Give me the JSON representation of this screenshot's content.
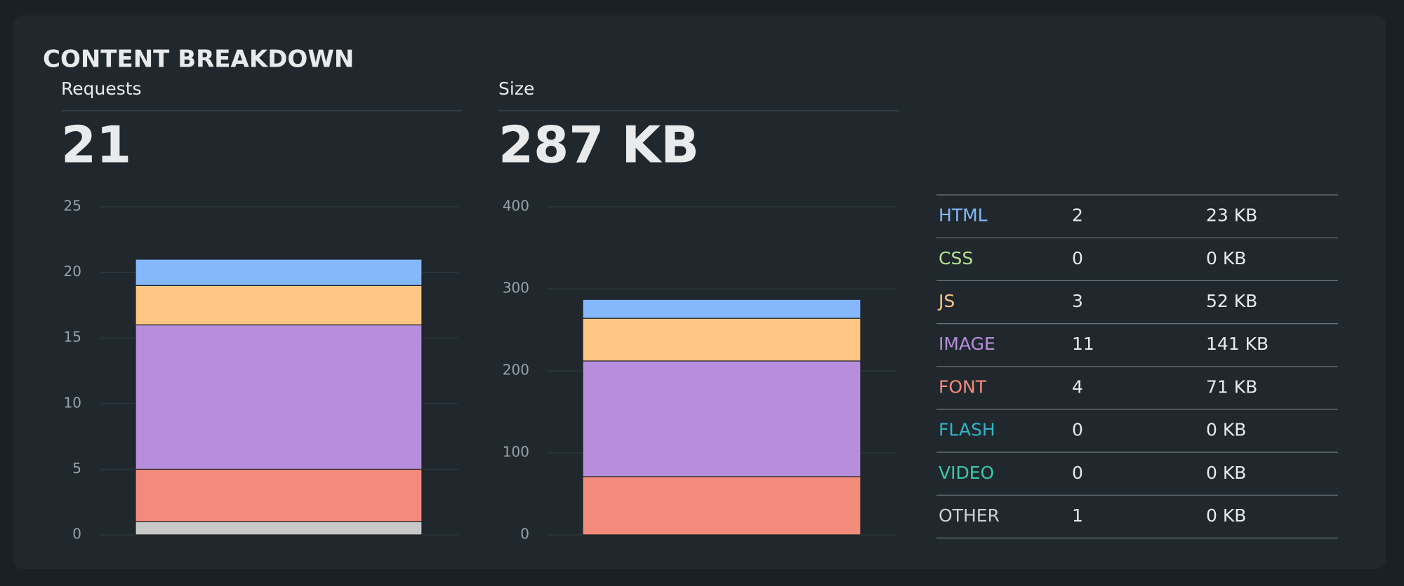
{
  "title": "CONTENT BREAKDOWN",
  "summary": [
    {
      "label": "Requests",
      "value": "21"
    },
    {
      "label": "Size",
      "value": "287 KB"
    }
  ],
  "chart_data": [
    {
      "type": "bar",
      "stacked": true,
      "categories": [
        null
      ],
      "ylim": [
        0,
        25
      ],
      "yticks": [
        0,
        5,
        10,
        15,
        20,
        25
      ],
      "grid": true,
      "series": [
        {
          "color": "#c8c8c8",
          "values": [
            1
          ]
        },
        {
          "color": "#3cc8a8",
          "values": [
            0
          ]
        },
        {
          "color": "#2fb4c6",
          "values": [
            0
          ]
        },
        {
          "color": "#f38b7d",
          "values": [
            4
          ]
        },
        {
          "color": "#b68edb",
          "values": [
            11
          ]
        },
        {
          "color": "#fec584",
          "values": [
            3
          ]
        },
        {
          "color": "#b6e28e",
          "values": [
            0
          ]
        },
        {
          "color": "#85b7fc",
          "values": [
            2
          ]
        }
      ]
    },
    {
      "type": "bar",
      "stacked": true,
      "categories": [
        null
      ],
      "ylim": [
        0,
        400
      ],
      "yticks": [
        0,
        100,
        200,
        300,
        400
      ],
      "grid": true,
      "series": [
        {
          "color": "#c8c8c8",
          "values": [
            0
          ]
        },
        {
          "color": "#3cc8a8",
          "values": [
            0
          ]
        },
        {
          "color": "#2fb4c6",
          "values": [
            0
          ]
        },
        {
          "color": "#f38b7d",
          "values": [
            71
          ]
        },
        {
          "color": "#b68edb",
          "values": [
            141
          ]
        },
        {
          "color": "#fec584",
          "values": [
            52
          ]
        },
        {
          "color": "#b6e28e",
          "values": [
            0
          ]
        },
        {
          "color": "#85b7fc",
          "values": [
            23
          ]
        }
      ]
    }
  ],
  "table": {
    "rows": [
      {
        "type": "HTML",
        "color": "#85b7fc",
        "requests": "2",
        "size": "23 KB"
      },
      {
        "type": "CSS",
        "color": "#b6e28e",
        "requests": "0",
        "size": "0 KB"
      },
      {
        "type": "JS",
        "color": "#fec584",
        "requests": "3",
        "size": "52 KB"
      },
      {
        "type": "IMAGE",
        "color": "#b68edb",
        "requests": "11",
        "size": "141 KB"
      },
      {
        "type": "FONT",
        "color": "#f38b7d",
        "requests": "4",
        "size": "71 KB"
      },
      {
        "type": "FLASH",
        "color": "#2fb4c6",
        "requests": "0",
        "size": "0 KB"
      },
      {
        "type": "VIDEO",
        "color": "#3cc8a8",
        "requests": "0",
        "size": "0 KB"
      },
      {
        "type": "OTHER",
        "color": "#d0d0d0",
        "requests": "1",
        "size": "0 KB"
      }
    ]
  }
}
